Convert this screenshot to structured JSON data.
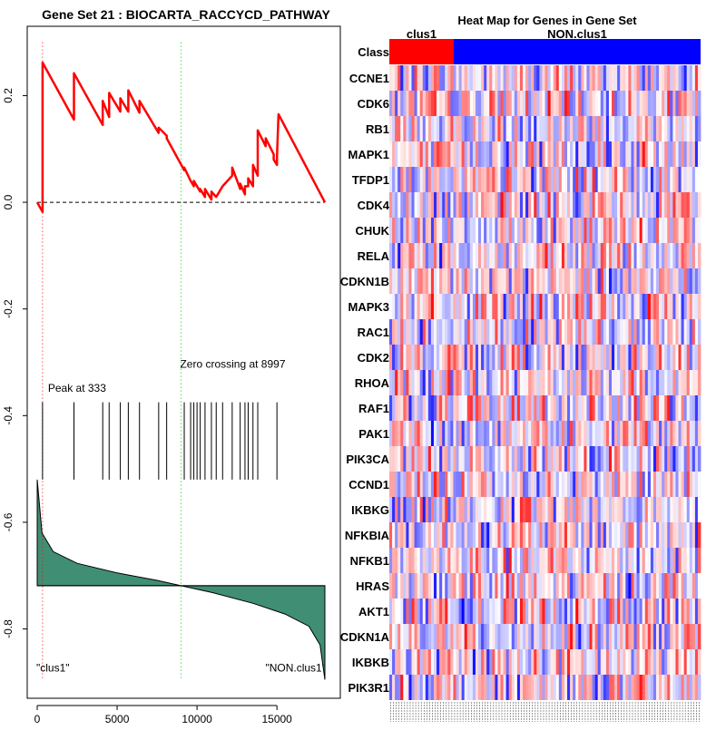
{
  "chart_data": [
    {
      "type": "line",
      "title": "Gene Set  21 : BIOCARTA_RACCYCD_PATHWAY",
      "xlim": [
        0,
        18000
      ],
      "ylim": [
        -0.93,
        0.33
      ],
      "x_ticks": [
        0,
        5000,
        10000,
        15000
      ],
      "y_ticks": [
        0.2,
        0.0,
        -0.2,
        -0.4,
        -0.6,
        -0.8
      ],
      "y_tick_labels": [
        "0.2",
        "0.0",
        "-0.2",
        "-0.4",
        "-0.6",
        "-0.8"
      ],
      "grid": false,
      "annotations": {
        "peak_label": "Peak at 333",
        "peak_x": 333,
        "zero_crossing_label": "Zero crossing at 8997",
        "zero_crossing_x": 8997,
        "left_class_label": "\"clus1\"",
        "right_class_label": "\"NON.clus1\""
      },
      "series": [
        {
          "role": "running-enrichment-score",
          "color": "#ff0000",
          "points": [
            [
              0,
              0.0
            ],
            [
              333,
              -0.018
            ],
            [
              333,
              0.262
            ],
            [
              2300,
              0.155
            ],
            [
              2300,
              0.242
            ],
            [
              4100,
              0.145
            ],
            [
              4100,
              0.19
            ],
            [
              4500,
              0.16
            ],
            [
              4500,
              0.205
            ],
            [
              5200,
              0.17
            ],
            [
              5200,
              0.195
            ],
            [
              5700,
              0.17
            ],
            [
              5700,
              0.21
            ],
            [
              6400,
              0.168
            ],
            [
              6400,
              0.19
            ],
            [
              7600,
              0.13
            ],
            [
              7600,
              0.14
            ],
            [
              8100,
              0.125
            ],
            [
              8100,
              0.12
            ],
            [
              9200,
              0.06
            ],
            [
              9200,
              0.065
            ],
            [
              9600,
              0.04
            ],
            [
              9800,
              0.03
            ],
            [
              9800,
              0.04
            ],
            [
              10000,
              0.03
            ],
            [
              10200,
              0.02
            ],
            [
              10200,
              0.025
            ],
            [
              10500,
              0.01
            ],
            [
              10500,
              0.025
            ],
            [
              10900,
              0.005
            ],
            [
              10900,
              0.02
            ],
            [
              11200,
              0.01
            ],
            [
              11600,
              0.03
            ],
            [
              12200,
              0.05
            ],
            [
              12200,
              0.065
            ],
            [
              12700,
              0.025
            ],
            [
              12700,
              0.035
            ],
            [
              13000,
              0.015
            ],
            [
              13000,
              0.03
            ],
            [
              13200,
              0.03
            ],
            [
              13200,
              0.045
            ],
            [
              13500,
              0.03
            ],
            [
              13500,
              0.07
            ],
            [
              13800,
              0.05
            ],
            [
              13800,
              0.135
            ],
            [
              14300,
              0.105
            ],
            [
              14300,
              0.12
            ],
            [
              14800,
              0.09
            ],
            [
              14800,
              0.08
            ],
            [
              15000,
              0.07
            ],
            [
              15000,
              0.085
            ],
            [
              15100,
              0.165
            ],
            [
              18000,
              0.0
            ]
          ]
        },
        {
          "role": "gene-hit-positions",
          "color": "#000000",
          "x": [
            333,
            2300,
            4100,
            4500,
            5200,
            5700,
            6400,
            7600,
            8100,
            9200,
            9600,
            9800,
            10000,
            10200,
            10500,
            10900,
            11200,
            11600,
            12200,
            12700,
            13000,
            13200,
            13500,
            13800,
            15000
          ]
        },
        {
          "role": "ranked-list-metric",
          "fill": "#408e74",
          "baseline": -0.719,
          "shape_points": [
            [
              0,
              -0.52
            ],
            [
              300,
              -0.62
            ],
            [
              1000,
              -0.655
            ],
            [
              2500,
              -0.677
            ],
            [
              5000,
              -0.695
            ],
            [
              7500,
              -0.709
            ],
            [
              9000,
              -0.719
            ],
            [
              11000,
              -0.732
            ],
            [
              13500,
              -0.752
            ],
            [
              15500,
              -0.772
            ],
            [
              17000,
              -0.795
            ],
            [
              17700,
              -0.83
            ],
            [
              18000,
              -0.895
            ]
          ]
        }
      ],
      "reference_lines": [
        {
          "axis": "y",
          "value": 0.0,
          "style": "dashed",
          "color": "#000000"
        },
        {
          "axis": "x",
          "value": 333,
          "style": "dotted",
          "color": "#ff0000"
        },
        {
          "axis": "x",
          "value": 8997,
          "style": "dotted",
          "color": "#00cc00"
        }
      ]
    },
    {
      "type": "heatmap",
      "title": "Heat Map for Genes in Gene Set",
      "class_row_label": "Class",
      "classes": [
        {
          "name": "clus1",
          "color": "#ff0000",
          "fraction": 0.207
        },
        {
          "name": "NON.clus1",
          "color": "#0000ff",
          "fraction": 0.793
        }
      ],
      "rows": [
        "CCNE1",
        "CDK6",
        "RB1",
        "MAPK1",
        "TFDP1",
        "CDK4",
        "CHUK",
        "RELA",
        "CDKN1B",
        "MAPK3",
        "RAC1",
        "CDK2",
        "RHOA",
        "RAF1",
        "PAK1",
        "PIK3CA",
        "CCND1",
        "IKBKG",
        "NFKBIA",
        "NFKB1",
        "HRAS",
        "AKT1",
        "CDKN1A",
        "IKBKB",
        "PIK3R1"
      ],
      "colormap": {
        "low": "#0000ff",
        "mid": "#ffffff",
        "high": "#ff0000"
      }
    }
  ]
}
